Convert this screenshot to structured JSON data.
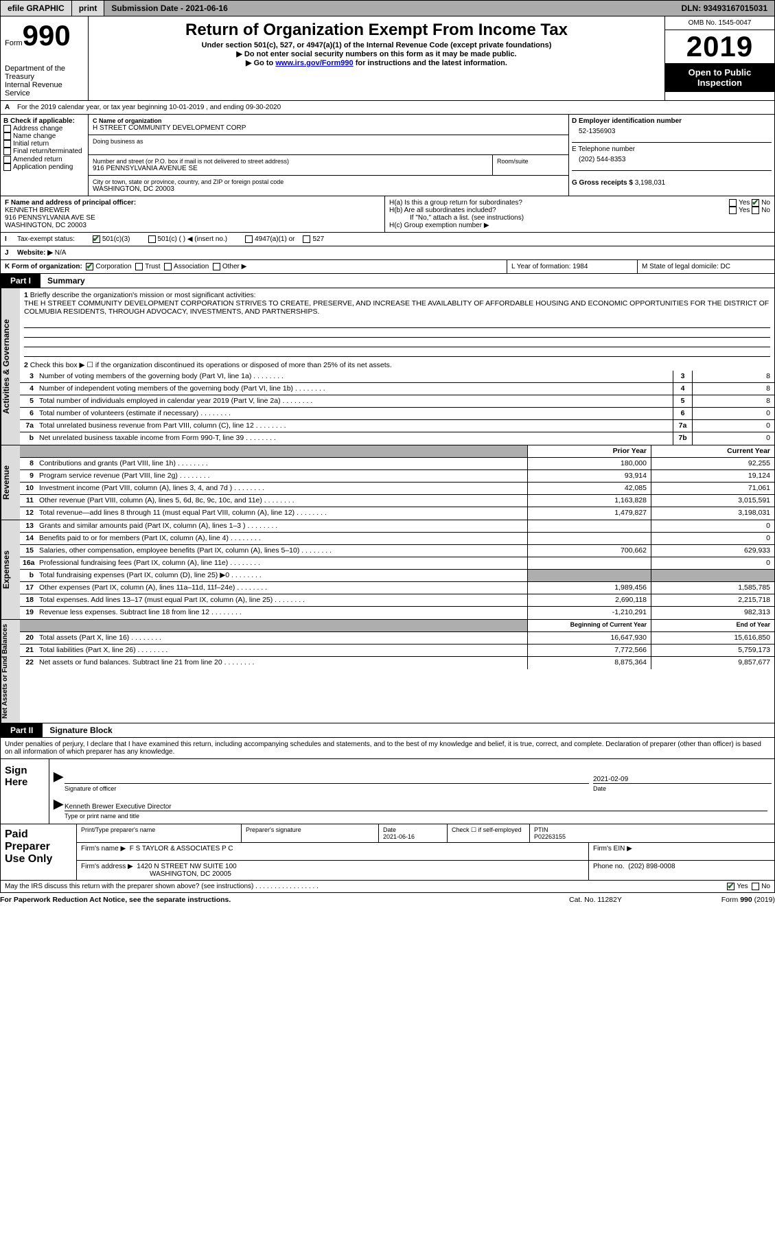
{
  "topbar": {
    "efile": "efile GRAPHIC",
    "print": "print",
    "sub_label": "Submission Date -",
    "sub_date": "2021-06-16",
    "dln_label": "DLN:",
    "dln": "93493167015031"
  },
  "header": {
    "form_word": "Form",
    "form_num": "990",
    "dept": "Department of the Treasury\nInternal Revenue Service",
    "title": "Return of Organization Exempt From Income Tax",
    "sub1": "Under section 501(c), 527, or 4947(a)(1) of the Internal Revenue Code (except private foundations)",
    "sub2": "▶ Do not enter social security numbers on this form as it may be made public.",
    "sub3a": "▶ Go to ",
    "sub3link": "www.irs.gov/Form990",
    "sub3b": " for instructions and the latest information.",
    "omb": "OMB No. 1545-0047",
    "year": "2019",
    "open": "Open to Public Inspection"
  },
  "lineA": "For the 2019 calendar year, or tax year beginning 10-01-2019   , and ending 09-30-2020",
  "boxB": {
    "title": "B Check if applicable:",
    "items": [
      "Address change",
      "Name change",
      "Initial return",
      "Final return/terminated",
      "Amended return",
      "Application pending"
    ]
  },
  "boxC": {
    "label_name": "C Name of organization",
    "name": "H STREET COMMUNITY DEVELOPMENT CORP",
    "dba_label": "Doing business as",
    "addr_label": "Number and street (or P.O. box if mail is not delivered to street address)",
    "room_label": "Room/suite",
    "addr": "916 PENNSYLVANIA AVENUE SE",
    "city_label": "City or town, state or province, country, and ZIP or foreign postal code",
    "city": "WASHINGTON, DC  20003"
  },
  "boxD": {
    "label": "D Employer identification number",
    "val": "52-1356903"
  },
  "boxE": {
    "label": "E Telephone number",
    "val": "(202) 544-8353"
  },
  "boxG": {
    "label": "G Gross receipts $",
    "val": "3,198,031"
  },
  "boxF": {
    "label": "F  Name and address of principal officer:",
    "l1": "KENNETH BREWER",
    "l2": "916 PENNSYLVANIA AVE SE",
    "l3": "WASHINGTON, DC  20003"
  },
  "boxH": {
    "a": "H(a)  Is this a group return for subordinates?",
    "b": "H(b)  Are all subordinates included?",
    "note": "If \"No,\" attach a list. (see instructions)",
    "c": "H(c)  Group exemption number ▶",
    "yes": "Yes",
    "no": "No"
  },
  "rowI": {
    "label": "Tax-exempt status:",
    "o1": "501(c)(3)",
    "o2": "501(c) (  ) ◀ (insert no.)",
    "o3": "4947(a)(1) or",
    "o4": "527"
  },
  "rowJ": {
    "label": "Website: ▶",
    "val": "N/A"
  },
  "rowK": {
    "label": "K Form of organization:",
    "o1": "Corporation",
    "o2": "Trust",
    "o3": "Association",
    "o4": "Other ▶"
  },
  "rowLM": {
    "l": "L Year of formation: 1984",
    "m": "M State of legal domicile: DC"
  },
  "part1": {
    "tab": "Part I",
    "title": "Summary"
  },
  "mission": {
    "q": "Briefly describe the organization's mission or most significant activities:",
    "text": "THE H STREET COMMUNITY DEVELOPMENT CORPORATION STRIVES TO CREATE, PRESERVE, AND INCREASE THE AVAILABLITY OF AFFORDABLE HOUSING AND ECONOMIC OPPORTUNITIES FOR THE DISTRICT OF COLMUBIA RESIDENTS, THROUGH ADVOCACY, INVESTMENTS, AND PARTNERSHIPS."
  },
  "gov": {
    "l2": "Check this box ▶ ☐  if the organization discontinued its operations or disposed of more than 25% of its net assets.",
    "rows": [
      {
        "n": "3",
        "t": "Number of voting members of the governing body (Part VI, line 1a)",
        "box": "3",
        "v": "8"
      },
      {
        "n": "4",
        "t": "Number of independent voting members of the governing body (Part VI, line 1b)",
        "box": "4",
        "v": "8"
      },
      {
        "n": "5",
        "t": "Total number of individuals employed in calendar year 2019 (Part V, line 2a)",
        "box": "5",
        "v": "8"
      },
      {
        "n": "6",
        "t": "Total number of volunteers (estimate if necessary)",
        "box": "6",
        "v": "0"
      },
      {
        "n": "7a",
        "t": "Total unrelated business revenue from Part VIII, column (C), line 12",
        "box": "7a",
        "v": "0"
      },
      {
        "n": "b",
        "t": "Net unrelated business taxable income from Form 990-T, line 39",
        "box": "7b",
        "v": "0"
      }
    ]
  },
  "hdrPC": {
    "c1": "Prior Year",
    "c2": "Current Year"
  },
  "revenue": [
    {
      "n": "8",
      "t": "Contributions and grants (Part VIII, line 1h)",
      "c1": "180,000",
      "c2": "92,255"
    },
    {
      "n": "9",
      "t": "Program service revenue (Part VIII, line 2g)",
      "c1": "93,914",
      "c2": "19,124"
    },
    {
      "n": "10",
      "t": "Investment income (Part VIII, column (A), lines 3, 4, and 7d )",
      "c1": "42,085",
      "c2": "71,061"
    },
    {
      "n": "11",
      "t": "Other revenue (Part VIII, column (A), lines 5, 6d, 8c, 9c, 10c, and 11e)",
      "c1": "1,163,828",
      "c2": "3,015,591"
    },
    {
      "n": "12",
      "t": "Total revenue—add lines 8 through 11 (must equal Part VIII, column (A), line 12)",
      "c1": "1,479,827",
      "c2": "3,198,031"
    }
  ],
  "expenses": [
    {
      "n": "13",
      "t": "Grants and similar amounts paid (Part IX, column (A), lines 1–3 )",
      "c1": "",
      "c2": "0"
    },
    {
      "n": "14",
      "t": "Benefits paid to or for members (Part IX, column (A), line 4)",
      "c1": "",
      "c2": "0"
    },
    {
      "n": "15",
      "t": "Salaries, other compensation, employee benefits (Part IX, column (A), lines 5–10)",
      "c1": "700,662",
      "c2": "629,933"
    },
    {
      "n": "16a",
      "t": "Professional fundraising fees (Part IX, column (A), line 11e)",
      "c1": "",
      "c2": "0"
    },
    {
      "n": "b",
      "t": "Total fundraising expenses (Part IX, column (D), line 25) ▶0",
      "c1": "SHADE",
      "c2": "SHADE"
    },
    {
      "n": "17",
      "t": "Other expenses (Part IX, column (A), lines 11a–11d, 11f–24e)",
      "c1": "1,989,456",
      "c2": "1,585,785"
    },
    {
      "n": "18",
      "t": "Total expenses. Add lines 13–17 (must equal Part IX, column (A), line 25)",
      "c1": "2,690,118",
      "c2": "2,215,718"
    },
    {
      "n": "19",
      "t": "Revenue less expenses. Subtract line 18 from line 12",
      "c1": "-1,210,291",
      "c2": "982,313"
    }
  ],
  "hdrBal": {
    "c1": "Beginning of Current Year",
    "c2": "End of Year"
  },
  "balances": [
    {
      "n": "20",
      "t": "Total assets (Part X, line 16)",
      "c1": "16,647,930",
      "c2": "15,616,850"
    },
    {
      "n": "21",
      "t": "Total liabilities (Part X, line 26)",
      "c1": "7,772,566",
      "c2": "5,759,173"
    },
    {
      "n": "22",
      "t": "Net assets or fund balances. Subtract line 21 from line 20",
      "c1": "8,875,364",
      "c2": "9,857,677"
    }
  ],
  "part2": {
    "tab": "Part II",
    "title": "Signature Block"
  },
  "perjury": "Under penalties of perjury, I declare that I have examined this return, including accompanying schedules and statements, and to the best of my knowledge and belief, it is true, correct, and complete. Declaration of preparer (other than officer) is based on all information of which preparer has any knowledge.",
  "sign": {
    "here": "Sign Here",
    "sig_cap": "Signature of officer",
    "date_cap": "Date",
    "date": "2021-02-09",
    "name": "Kenneth Brewer  Executive Director",
    "name_cap": "Type or print name and title"
  },
  "paid": {
    "label": "Paid Preparer Use Only",
    "h1": "Print/Type preparer's name",
    "h2": "Preparer's signature",
    "h3": "Date",
    "h3v": "2021-06-16",
    "h4": "Check ☐ if self-employed",
    "h5": "PTIN",
    "h5v": "P02263155",
    "firm_l": "Firm's name    ▶",
    "firm": "F S TAYLOR & ASSOCIATES P C",
    "ein_l": "Firm's EIN ▶",
    "addr_l": "Firm's address ▶",
    "addr1": "1420 N STREET NW SUITE 100",
    "addr2": "WASHINGTON, DC  20005",
    "phone_l": "Phone no.",
    "phone": "(202) 898-0008"
  },
  "discuss": {
    "q": "May the IRS discuss this return with the preparer shown above? (see instructions)",
    "yes": "Yes",
    "no": "No"
  },
  "footer": {
    "left": "For Paperwork Reduction Act Notice, see the separate instructions.",
    "mid": "Cat. No. 11282Y",
    "right": "Form 990 (2019)"
  }
}
